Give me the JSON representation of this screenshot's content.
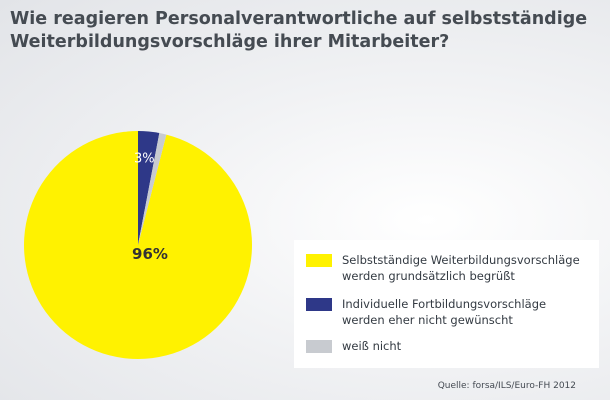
{
  "title": {
    "line1": "Wie reagieren Personalverantwortliche auf selbstständige",
    "line2": "Weiterbildungsvorschläge ihrer Mitarbeiter?"
  },
  "chart_data": {
    "type": "pie",
    "slices": [
      {
        "label": "96%",
        "value": 96,
        "color": "#fff200"
      },
      {
        "label": "3%",
        "value": 3,
        "color": "#2e3888"
      },
      {
        "label": "",
        "value": 1,
        "color": "#c8cbd0"
      }
    ],
    "legend": {
      "placement": "bottom-right",
      "entries": [
        {
          "line1": "Selbstständige Weiterbildungsvorschläge",
          "line2": "werden grundsätzlich begrüßt",
          "color": "#fff200"
        },
        {
          "line1": "Individuelle Fortbildungsvorschläge",
          "line2": "werden eher nicht gewünscht",
          "color": "#2e3888"
        },
        {
          "line1": "weiß nicht",
          "line2": "",
          "color": "#c8cbd0"
        }
      ]
    }
  },
  "source": "Quelle: forsa/ILS/Euro-FH 2012"
}
